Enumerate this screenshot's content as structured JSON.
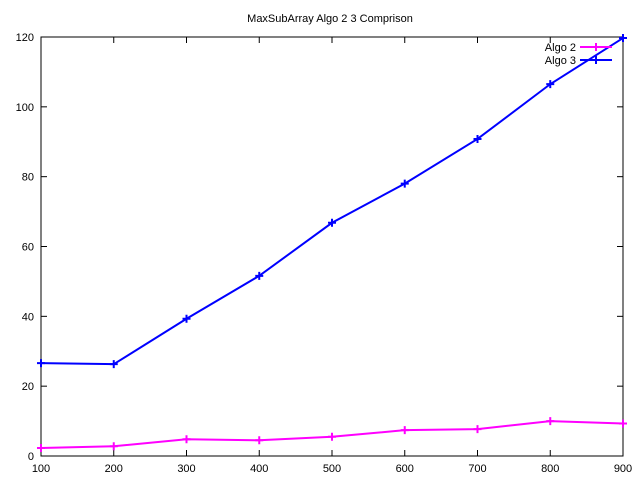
{
  "chart_data": {
    "type": "line",
    "title": "MaxSubArray Algo 2   3 Comprison",
    "xlabel": "",
    "ylabel": "",
    "xlim": [
      100,
      900
    ],
    "ylim": [
      0,
      120
    ],
    "xticks": [
      100,
      200,
      300,
      400,
      500,
      600,
      700,
      800,
      900
    ],
    "yticks": [
      0,
      20,
      40,
      60,
      80,
      100,
      120
    ],
    "grid": false,
    "legend_position": "top-right",
    "x": [
      100,
      200,
      300,
      400,
      500,
      600,
      700,
      800,
      900
    ],
    "series": [
      {
        "name": "Algo 2",
        "color": "#ff00ff",
        "marker": "plus",
        "values": [
          2.3,
          2.8,
          4.8,
          4.5,
          5.5,
          7.4,
          7.7,
          10.0,
          9.3
        ]
      },
      {
        "name": "Algo 3",
        "color": "#0000ff",
        "marker": "plus",
        "values": [
          26.6,
          26.3,
          39.3,
          51.6,
          66.8,
          78.0,
          90.8,
          106.5,
          119.7
        ]
      }
    ]
  }
}
